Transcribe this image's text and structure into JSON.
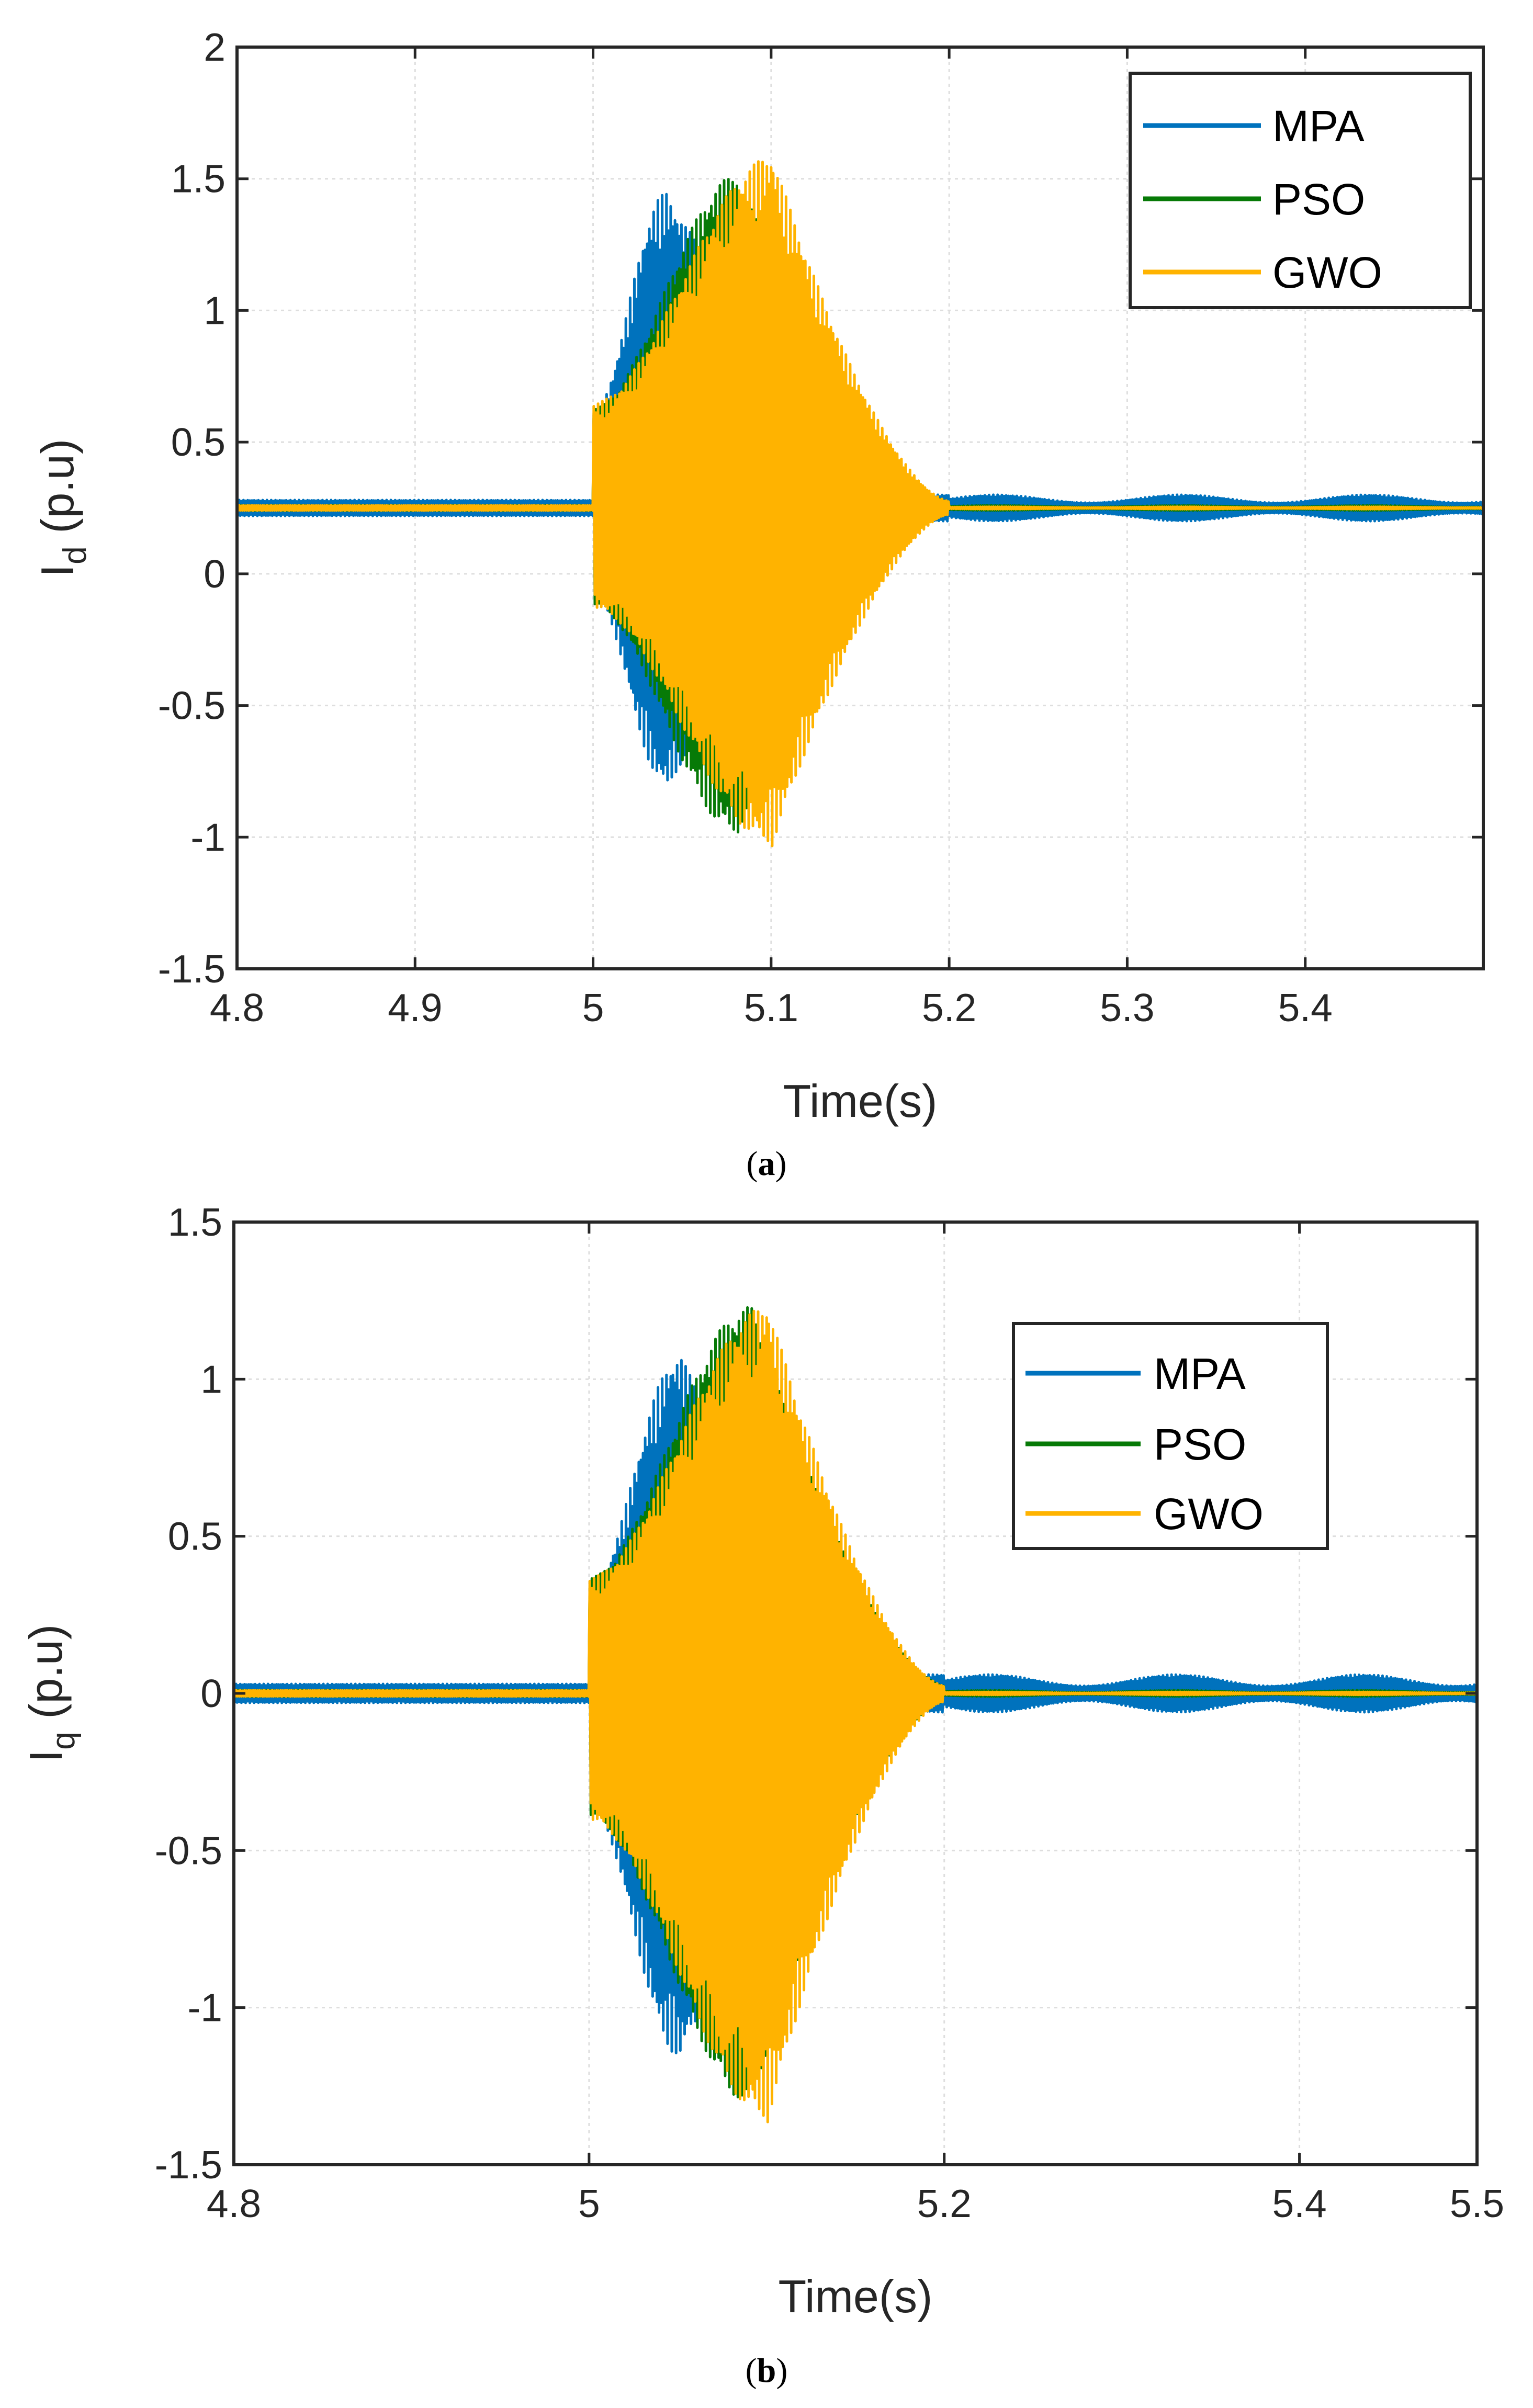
{
  "colors": {
    "MPA": "#0072BD",
    "PSO": "#077A07",
    "GWO": "#FFB300",
    "grid": "#DEDEDE",
    "axis": "#262626"
  },
  "chart_data": [
    {
      "type": "line",
      "caption": {
        "open": "(",
        "letter": "a",
        "close": ")"
      },
      "xlabel": "Time(s)",
      "ylabel": {
        "main": "I",
        "sub": "d",
        "rest": " (p.u)"
      },
      "xlim": [
        4.8,
        5.5
      ],
      "ylim": [
        -1.5,
        2
      ],
      "xticks": [
        4.8,
        4.9,
        5.0,
        5.1,
        5.2,
        5.3,
        5.4
      ],
      "xtick_labels": [
        "4.8",
        "4.9",
        "5",
        "5.1",
        "5.2",
        "5.3",
        "5.4"
      ],
      "yticks": [
        -1.5,
        -1,
        -0.5,
        0,
        0.5,
        1,
        1.5,
        2
      ],
      "ytick_labels": [
        "-1.5",
        "-1",
        "-0.5",
        "0",
        "0.5",
        "1",
        "1.5",
        "2"
      ],
      "grid": true,
      "legend_position": "top-right",
      "series": [
        {
          "name": "MPA",
          "color_key": "MPA",
          "baseline": 0.25,
          "steady_amp": 0.03,
          "t_start": 5.0,
          "t_peak": 5.04,
          "t_end": 5.2,
          "peak_upper": 1.44,
          "peak_lower": -0.8,
          "late_amp": 0.05
        },
        {
          "name": "PSO",
          "color_key": "PSO",
          "baseline": 0.25,
          "steady_amp": 0.01,
          "t_start": 5.0,
          "t_peak": 5.08,
          "t_end": 5.2,
          "peak_upper": 1.51,
          "peak_lower": -0.98,
          "late_amp": 0.01
        },
        {
          "name": "GWO",
          "color_key": "GWO",
          "baseline": 0.25,
          "steady_amp": 0.01,
          "t_start": 5.0,
          "t_peak": 5.1,
          "t_end": 5.2,
          "peak_upper": 1.58,
          "peak_lower": -1.02,
          "late_amp": 0.005
        }
      ]
    },
    {
      "type": "line",
      "caption": {
        "open": "(",
        "letter": "b",
        "close": ")"
      },
      "xlabel": "Time(s)",
      "ylabel": {
        "main": "I",
        "sub": "q",
        "rest": " (p.u)"
      },
      "xlim": [
        4.8,
        5.5
      ],
      "ylim": [
        -1.5,
        1.5
      ],
      "xticks": [
        4.8,
        5.0,
        5.2,
        5.4,
        5.5
      ],
      "xtick_labels": [
        "4.8",
        "5",
        "5.2",
        "5.4",
        "5.5"
      ],
      "yticks": [
        -1.5,
        -1,
        -0.5,
        0,
        0.5,
        1,
        1.5
      ],
      "ytick_labels": [
        "-1.5",
        "-1",
        "-0.5",
        "0",
        "0.5",
        "1",
        "1.5"
      ],
      "grid": true,
      "legend_position": "top-right",
      "series": [
        {
          "name": "MPA",
          "color_key": "MPA",
          "baseline": 0.0,
          "steady_amp": 0.03,
          "t_start": 5.0,
          "t_peak": 5.05,
          "t_end": 5.2,
          "peak_upper": 1.07,
          "peak_lower": -1.15,
          "late_amp": 0.06
        },
        {
          "name": "PSO",
          "color_key": "PSO",
          "baseline": 0.0,
          "steady_amp": 0.01,
          "t_start": 5.0,
          "t_peak": 5.09,
          "t_end": 5.2,
          "peak_upper": 1.23,
          "peak_lower": -1.3,
          "late_amp": 0.01
        },
        {
          "name": "GWO",
          "color_key": "GWO",
          "baseline": 0.0,
          "steady_amp": 0.01,
          "t_start": 5.0,
          "t_peak": 5.1,
          "t_end": 5.2,
          "peak_upper": 1.23,
          "peak_lower": -1.35,
          "late_amp": 0.005
        }
      ]
    }
  ]
}
